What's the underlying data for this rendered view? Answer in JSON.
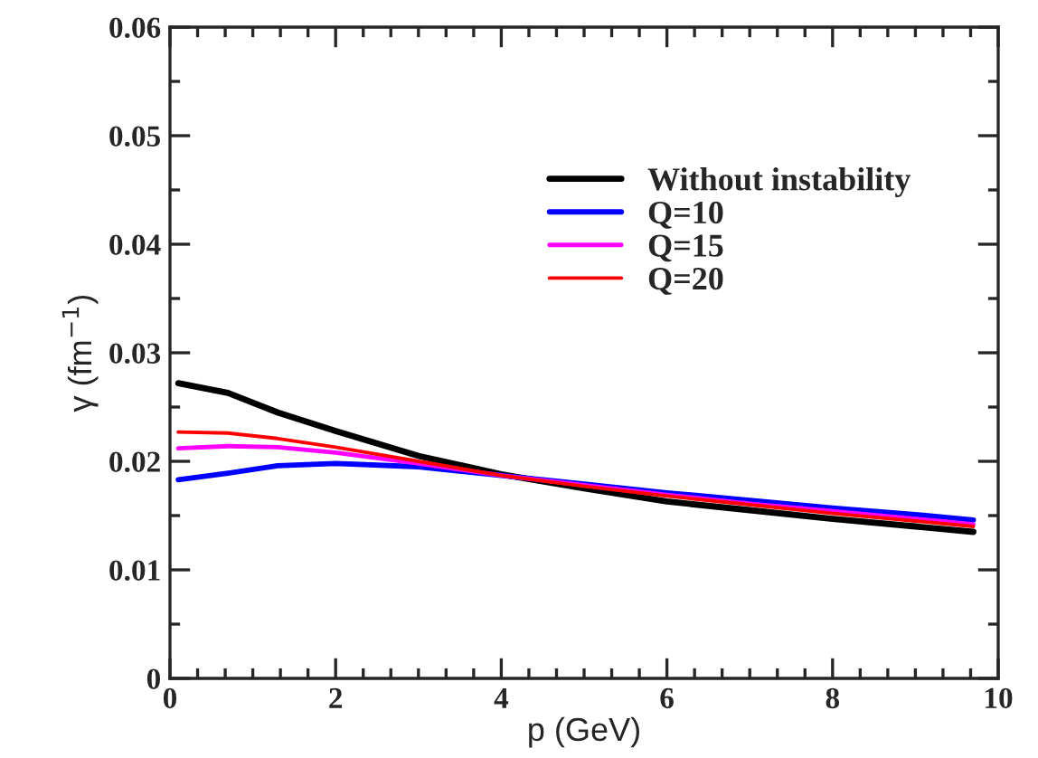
{
  "chart_data": {
    "type": "line",
    "xlabel": "p (GeV)",
    "ylabel": "γ (fm$^{−1}$)",
    "xlim": [
      0,
      10
    ],
    "ylim": [
      0,
      0.06
    ],
    "xticks": [
      0,
      2,
      4,
      6,
      8,
      10
    ],
    "yticks": [
      0,
      0.01,
      0.02,
      0.03,
      0.04,
      0.05,
      0.06
    ],
    "legend": "top right",
    "grid": false,
    "x": [
      0.1,
      0.7,
      1.3,
      2,
      3,
      4,
      5,
      6,
      7,
      8,
      9,
      9.7
    ],
    "series": [
      {
        "name": "Without instability",
        "color": "#000000",
        "values": [
          0.0272,
          0.0263,
          0.0245,
          0.0228,
          0.0205,
          0.0188,
          0.0175,
          0.0163,
          0.0155,
          0.0147,
          0.014,
          0.0135
        ]
      },
      {
        "name": "Q=10",
        "color": "#0000ff",
        "values": [
          0.0183,
          0.0189,
          0.0196,
          0.0198,
          0.0195,
          0.0187,
          0.0179,
          0.0171,
          0.0164,
          0.0157,
          0.0151,
          0.0146
        ]
      },
      {
        "name": "Q=15",
        "color": "#ff00ff",
        "values": [
          0.0212,
          0.0214,
          0.0213,
          0.0208,
          0.0198,
          0.0187,
          0.0178,
          0.0169,
          0.0161,
          0.0154,
          0.0147,
          0.0142
        ]
      },
      {
        "name": "Q=20",
        "color": "#ff0000",
        "values": [
          0.0227,
          0.0226,
          0.0221,
          0.0213,
          0.02,
          0.0187,
          0.0177,
          0.0168,
          0.016,
          0.0152,
          0.0145,
          0.014
        ]
      }
    ]
  }
}
